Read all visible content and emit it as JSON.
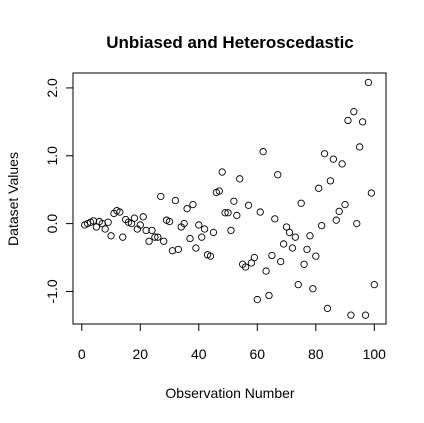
{
  "chart_data": {
    "type": "scatter",
    "title": "Unbiased and Heteroscedastic",
    "xlabel": "Observation Number",
    "ylabel": "Dataset Values",
    "xlim": [
      -3,
      104
    ],
    "ylim": [
      -1.48,
      2.22
    ],
    "x_ticks": [
      0,
      20,
      40,
      60,
      80,
      100
    ],
    "x_tick_labels": [
      "0",
      "20",
      "40",
      "60",
      "80",
      "100"
    ],
    "y_ticks": [
      -1.0,
      0.0,
      1.0,
      2.0
    ],
    "y_tick_labels": [
      "-1.0",
      "0.0",
      "1.0",
      "2.0"
    ],
    "grid": false,
    "legend": "none",
    "point_style": "open-circle",
    "point_color": "#000000",
    "series": [
      {
        "x": [
          1,
          2,
          3,
          4,
          5,
          6,
          7,
          8,
          9,
          10,
          11,
          12,
          13,
          14,
          15,
          16,
          17,
          18,
          19,
          20,
          21,
          22,
          23,
          24,
          25,
          26,
          27,
          28,
          29,
          30,
          31,
          32,
          33,
          34,
          35,
          36,
          37,
          38,
          39,
          40,
          41,
          42,
          43,
          44,
          45,
          46,
          47,
          48,
          49,
          50,
          51,
          52,
          53,
          54,
          55,
          56,
          57,
          58,
          59,
          60,
          61,
          62,
          63,
          64,
          65,
          66,
          67,
          68,
          69,
          70,
          71,
          72,
          73,
          74,
          75,
          76,
          77,
          78,
          79,
          80,
          81,
          82,
          83,
          84,
          85,
          86,
          87,
          88,
          89,
          90,
          91,
          92,
          93,
          94,
          95,
          96,
          97,
          98,
          99,
          100
        ],
        "y": [
          -0.02,
          0.0,
          0.02,
          0.04,
          -0.05,
          0.03,
          0.0,
          -0.08,
          0.02,
          -0.18,
          0.15,
          0.19,
          0.17,
          -0.2,
          0.06,
          0.02,
          0.0,
          0.08,
          -0.08,
          -0.02,
          0.1,
          -0.1,
          -0.26,
          -0.1,
          -0.2,
          -0.2,
          0.4,
          -0.26,
          0.05,
          0.03,
          -0.4,
          0.34,
          -0.38,
          -0.05,
          0.0,
          0.22,
          -0.22,
          0.28,
          -0.36,
          -0.02,
          -0.2,
          -0.08,
          -0.46,
          -0.48,
          -0.13,
          0.46,
          0.48,
          0.76,
          0.16,
          0.16,
          -0.1,
          0.33,
          0.12,
          0.66,
          -0.6,
          -0.64,
          0.27,
          -0.58,
          -0.5,
          -1.12,
          0.17,
          1.06,
          -0.7,
          -1.06,
          -0.47,
          0.07,
          0.72,
          -0.56,
          -0.3,
          -0.05,
          -0.13,
          -0.36,
          -0.2,
          -0.9,
          0.3,
          -0.6,
          -0.38,
          -0.18,
          -0.96,
          -0.48,
          0.52,
          -0.03,
          1.03,
          -1.25,
          0.63,
          0.95,
          0.05,
          0.18,
          0.88,
          0.28,
          1.52,
          -1.35,
          1.65,
          0.0,
          1.13,
          1.5,
          -1.35,
          2.08,
          0.45,
          -0.9
        ]
      }
    ]
  }
}
